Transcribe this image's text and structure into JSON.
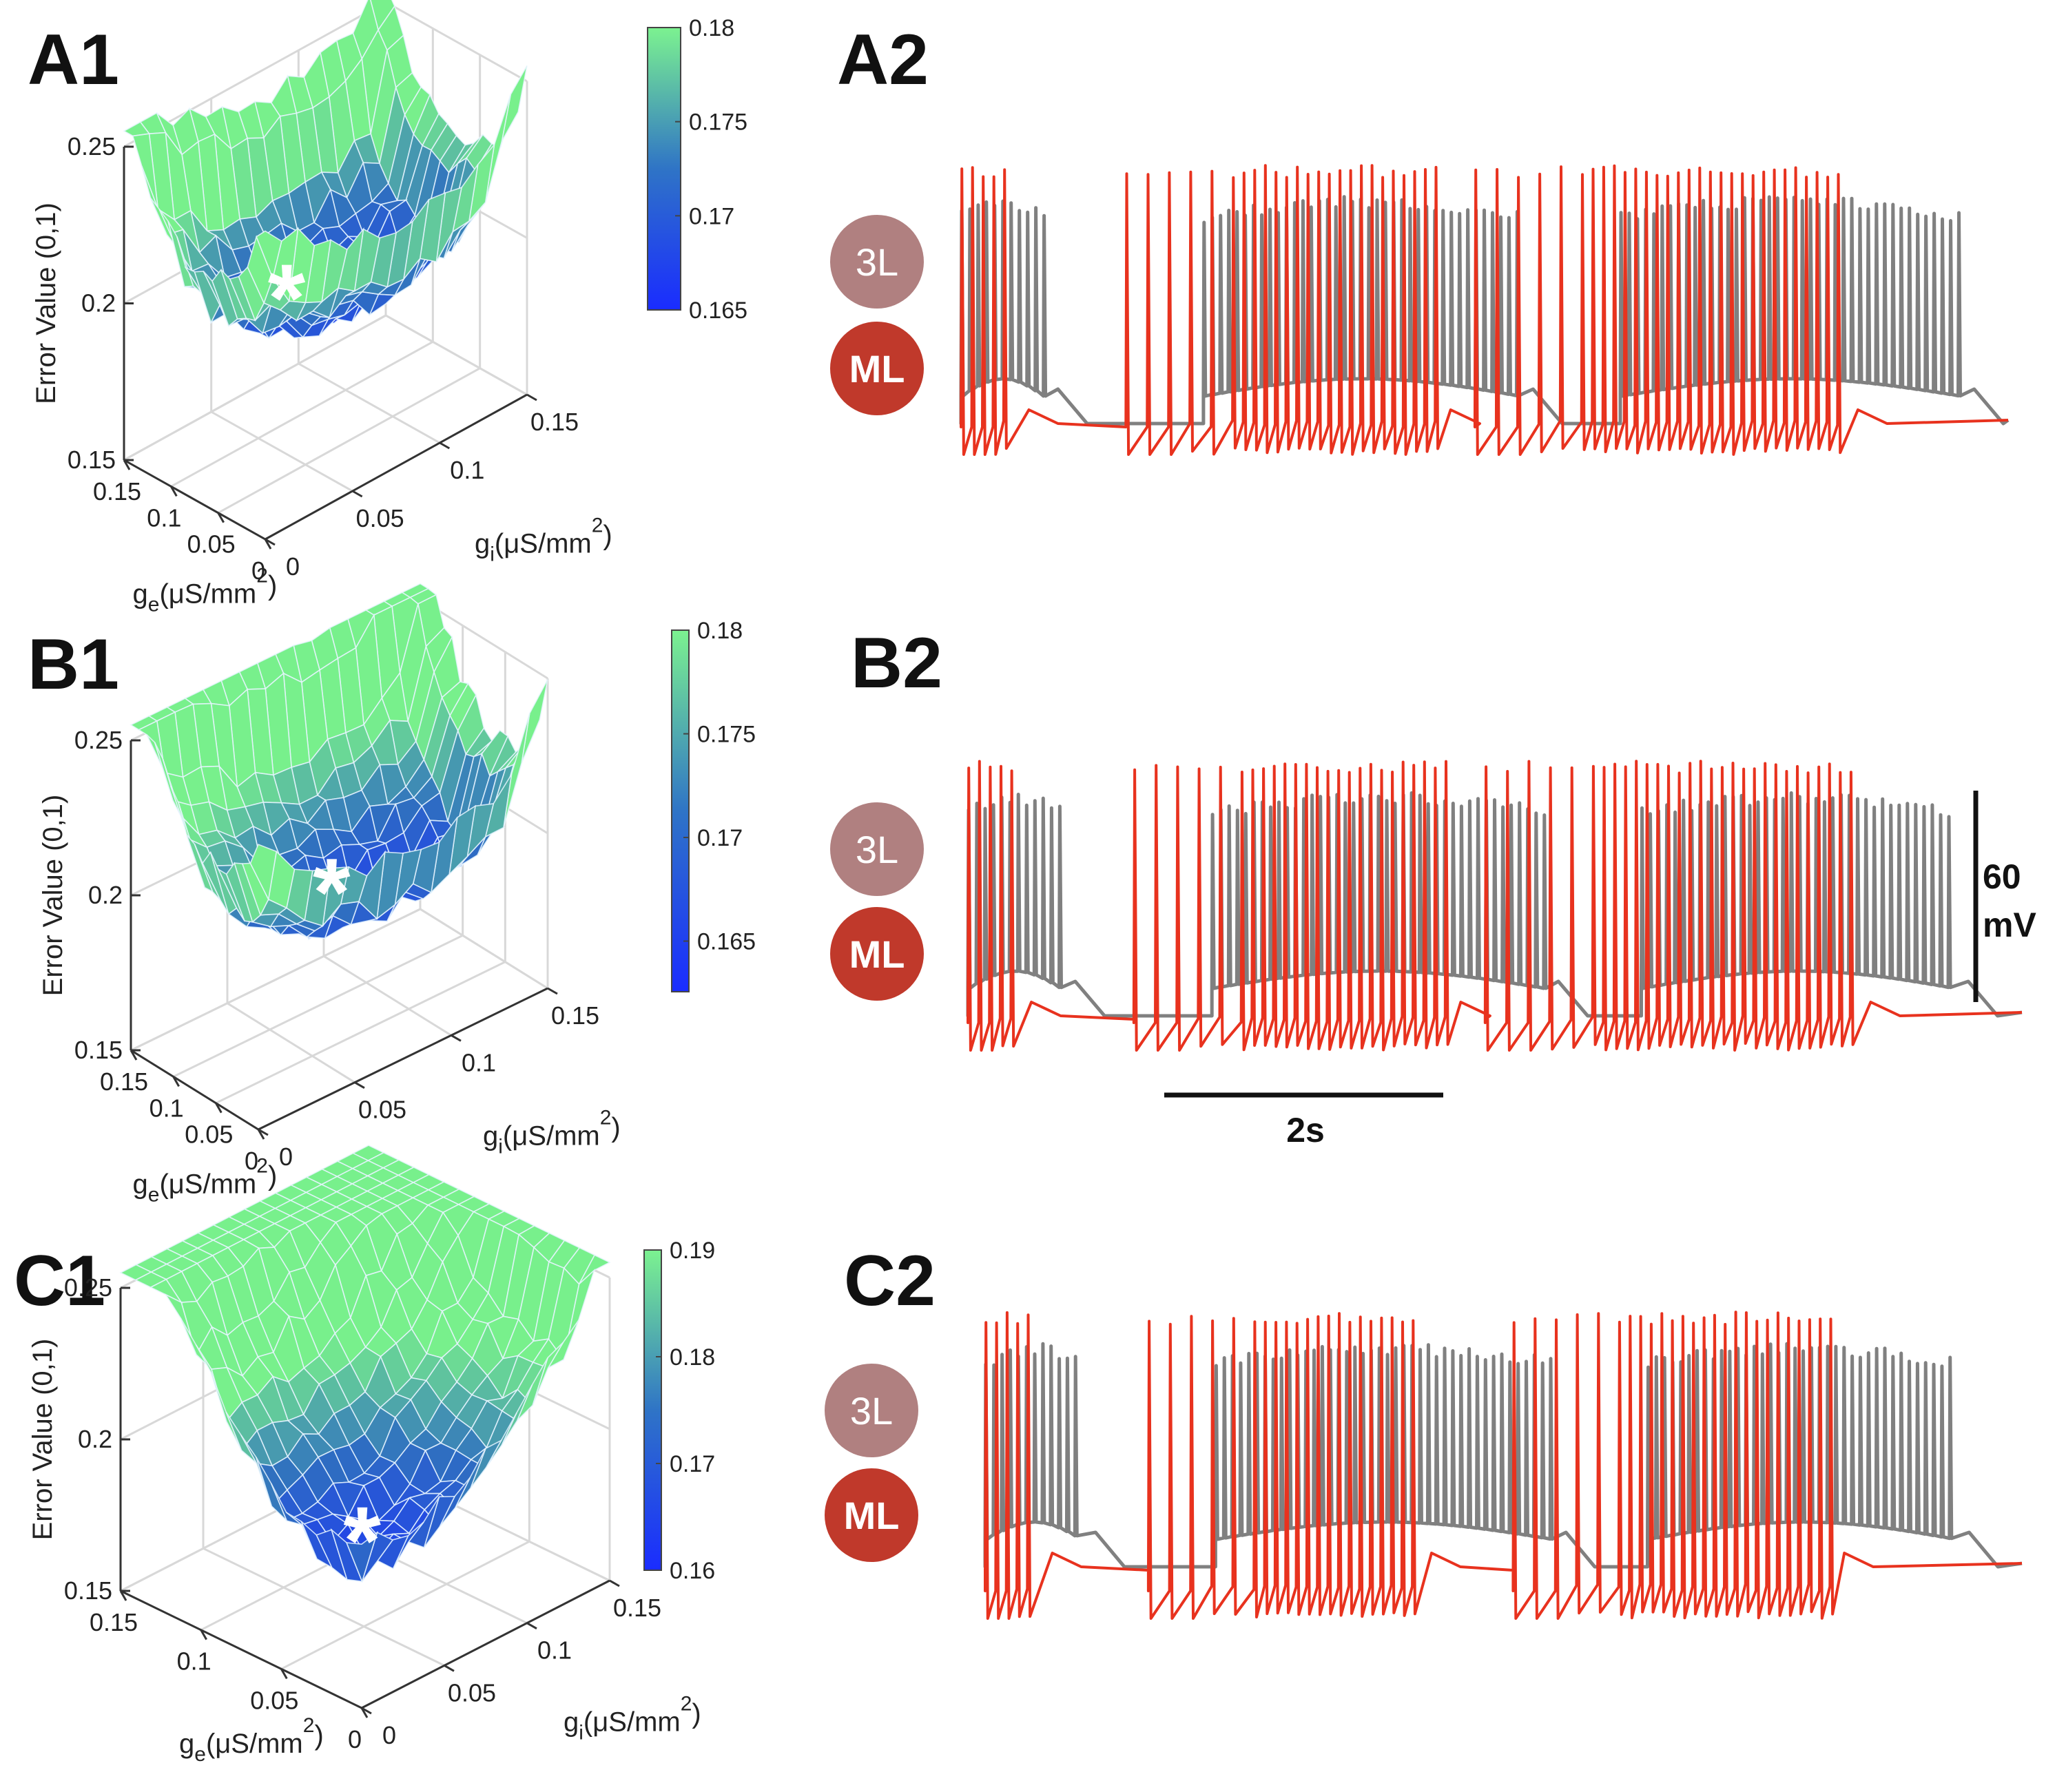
{
  "panels": [
    {
      "id": "A1",
      "label": "A1",
      "xlabel_main": "g",
      "xlabel_sub": "e",
      "xlabel_unit": "(μS/mm",
      "xlabel_sup": "2",
      "xlabel_close": ")",
      "ylabel_main": "g",
      "ylabel_sub": "i",
      "ylabel_unit": "(μS/mm",
      "ylabel_sup": "2",
      "ylabel_close": ")",
      "zlabel": "Error Value (0,1)",
      "ge_ticks": [
        "0.15",
        "0.1",
        "0.05",
        "0"
      ],
      "gi_ticks": [
        "0",
        "0.05",
        "0.1",
        "0.15"
      ],
      "z_ticks": [
        "0.15",
        "0.2",
        "0.25"
      ],
      "colorbar_ticks": [
        "0.18",
        "0.175",
        "0.17",
        "0.165"
      ],
      "marker": "*"
    },
    {
      "id": "B1",
      "label": "B1",
      "xlabel_main": "g",
      "xlabel_sub": "e",
      "xlabel_unit": "(μS/mm",
      "xlabel_sup": "2",
      "xlabel_close": ")",
      "ylabel_main": "g",
      "ylabel_sub": "i",
      "ylabel_unit": "(μS/mm",
      "ylabel_sup": "2",
      "ylabel_close": ")",
      "zlabel": "Error Value (0,1)",
      "ge_ticks": [
        "0.15",
        "0.1",
        "0.05",
        "0"
      ],
      "gi_ticks": [
        "0",
        "0.05",
        "0.1",
        "0.15"
      ],
      "z_ticks": [
        "0.15",
        "0.2",
        "0.25"
      ],
      "colorbar_ticks": [
        "0.18",
        "0.175",
        "0.17",
        "0.165"
      ],
      "marker": "*"
    },
    {
      "id": "C1",
      "label": "C1",
      "xlabel_main": "g",
      "xlabel_sub": "e",
      "xlabel_unit": "(μS/mm",
      "xlabel_sup": "2",
      "xlabel_close": ")",
      "ylabel_main": "g",
      "ylabel_sub": "i",
      "ylabel_unit": "(μS/mm",
      "ylabel_sup": "2",
      "ylabel_close": ")",
      "zlabel": "Error Value (0,1)",
      "ge_ticks": [
        "0.15",
        "0.1",
        "0.05",
        "0"
      ],
      "gi_ticks": [
        "0",
        "0.05",
        "0.1",
        "0.15"
      ],
      "z_ticks": [
        "0.15",
        "0.2",
        "0.25"
      ],
      "colorbar_ticks": [
        "0.19",
        "0.18",
        "0.17",
        "0.16"
      ],
      "marker": "*"
    }
  ],
  "trace_panels": [
    {
      "id": "A2",
      "label": "A2",
      "badge_3l": "3L",
      "badge_ml": "ML"
    },
    {
      "id": "B2",
      "label": "B2",
      "badge_3l": "3L",
      "badge_ml": "ML"
    },
    {
      "id": "C2",
      "label": "C2",
      "badge_3l": "3L",
      "badge_ml": "ML"
    }
  ],
  "scale_bars": {
    "time": "2s",
    "voltage_value": "60",
    "voltage_unit": "mV"
  },
  "colors": {
    "trace_3l": "#808080",
    "trace_ml": "#e8321e",
    "badge_3l": "#b08080",
    "badge_ml": "#c0392b",
    "colormap_low": "#1a2cff",
    "colormap_mid": "#2f6fc0",
    "colormap_high": "#78f08c"
  },
  "chart_data": [
    {
      "type": "surface",
      "panel": "A1",
      "x_axis": "g_e",
      "y_axis": "g_i",
      "xlim": [
        0,
        0.15
      ],
      "ylim": [
        0,
        0.15
      ],
      "zlim": [
        0.15,
        0.25
      ],
      "clim": [
        0.165,
        0.18
      ],
      "minimum_marker": {
        "g_e": 0.07,
        "g_i": 0.05
      }
    },
    {
      "type": "surface",
      "panel": "B1",
      "x_axis": "g_e",
      "y_axis": "g_i",
      "xlim": [
        0,
        0.15
      ],
      "ylim": [
        0,
        0.15
      ],
      "zlim": [
        0.15,
        0.25
      ],
      "clim": [
        0.163,
        0.18
      ],
      "minimum_marker": {
        "g_e": 0.05,
        "g_i": 0.06
      }
    },
    {
      "type": "surface",
      "panel": "C1",
      "x_axis": "g_e",
      "y_axis": "g_i",
      "xlim": [
        0,
        0.15
      ],
      "ylim": [
        0,
        0.15
      ],
      "zlim": [
        0.15,
        0.25
      ],
      "clim": [
        0.16,
        0.19
      ],
      "minimum_marker": {
        "g_e": 0.01,
        "g_i": 0.01
      }
    },
    {
      "type": "line",
      "panel": "A2",
      "series": [
        {
          "name": "3L",
          "bursts": [
            [
              0.0,
              0.85
            ],
            [
              2.5,
              5.75
            ],
            [
              6.8,
              10.3
            ]
          ]
        },
        {
          "name": "ML",
          "bursts": [
            [
              0.0,
              0.55
            ],
            [
              1.7,
              4.9
            ],
            [
              5.3,
              9.1
            ]
          ]
        }
      ],
      "x_range_s": [
        0,
        10.8
      ]
    },
    {
      "type": "line",
      "panel": "B2",
      "series": [
        {
          "name": "3L",
          "bursts": [
            [
              0.0,
              0.95
            ],
            [
              2.5,
              5.9
            ],
            [
              6.9,
              10.1
            ]
          ]
        },
        {
          "name": "ML",
          "bursts": [
            [
              0.0,
              0.5
            ],
            [
              1.7,
              4.9
            ],
            [
              5.3,
              9.1
            ]
          ]
        }
      ],
      "x_range_s": [
        0,
        10.8
      ]
    },
    {
      "type": "line",
      "panel": "C2",
      "series": [
        {
          "name": "3L",
          "bursts": [
            [
              0.0,
              1.0
            ],
            [
              2.4,
              5.9
            ],
            [
              6.9,
              10.1
            ]
          ]
        },
        {
          "name": "ML",
          "bursts": [
            [
              0.0,
              0.55
            ],
            [
              1.7,
              4.5
            ],
            [
              5.5,
              8.8
            ]
          ]
        }
      ],
      "x_range_s": [
        0,
        10.8
      ]
    }
  ]
}
